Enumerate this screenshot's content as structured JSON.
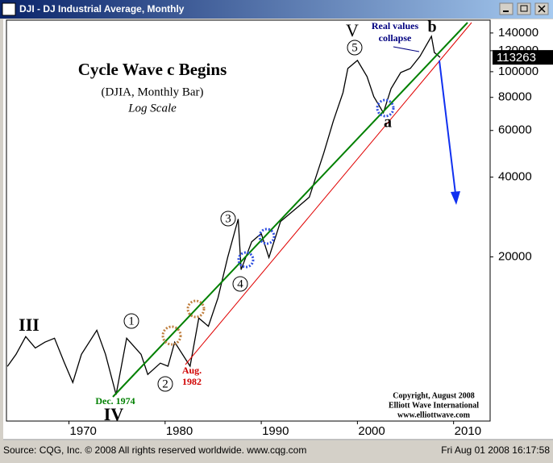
{
  "window": {
    "title": "DJI - DJ Industrial Average, Monthly"
  },
  "chart_data": {
    "type": "line",
    "title": "Cycle Wave c Begins",
    "subtitle": "(DJIA, Monthly Bar)",
    "scale_note": "Log Scale",
    "log_scale": true,
    "x": [
      1963.6,
      1964.5,
      1965.5,
      1966.5,
      1967.5,
      1968.5,
      1969.5,
      1970.4,
      1971.3,
      1972.9,
      1973.8,
      1974.9,
      1976.0,
      1977.5,
      1978.2,
      1979.5,
      1980.3,
      1981.0,
      1982.6,
      1983.5,
      1984.5,
      1985.5,
      1986.5,
      1987.6,
      1987.9,
      1989.0,
      1990.0,
      1990.8,
      1992.0,
      1994.0,
      1995.0,
      1996.5,
      1997.5,
      1998.5,
      1999.0,
      2000.0,
      2001.0,
      2001.7,
      2002.7,
      2003.5,
      2004.5,
      2005.5,
      2006.5,
      2007.7,
      2008.0,
      2008.6
    ],
    "series": [
      {
        "color": "#000000",
        "values": [
          7720,
          8570,
          10000,
          9060,
          9530,
          9860,
          8000,
          6710,
          8570,
          10570,
          8570,
          6040,
          9860,
          8570,
          7200,
          7940,
          7730,
          9530,
          7730,
          11740,
          10940,
          14000,
          19900,
          27800,
          17900,
          22800,
          24500,
          19900,
          27200,
          31300,
          33600,
          49300,
          65300,
          83400,
          102800,
          110300,
          95900,
          80500,
          70000,
          86300,
          99300,
          102800,
          114200,
          136000,
          118200,
          113263
        ]
      }
    ],
    "last_value": 113263,
    "xlim": [
      1963.5,
      2013.8
    ],
    "xticks": [
      1970,
      1980,
      1990,
      2000,
      2010
    ],
    "ylim": [
      4800,
      156500
    ],
    "yticks": [
      20000,
      40000,
      60000,
      80000,
      100000,
      120000,
      140000
    ],
    "annotations": [
      "III",
      "IV",
      "V",
      "a",
      "b",
      "1",
      "2",
      "3",
      "4",
      "5",
      "Dec. 1974",
      "Aug.",
      "1982",
      "Real values",
      "collapse",
      "Copyright, August 2008",
      "Elliott Wave International",
      "www.elliottwave.com"
    ]
  },
  "status_bar": {
    "source": "Source: CQG, Inc. © 2008 All rights reserved worldwide. www.cqg.com",
    "timestamp": "Fri Aug 01 2008 16:17:58"
  }
}
